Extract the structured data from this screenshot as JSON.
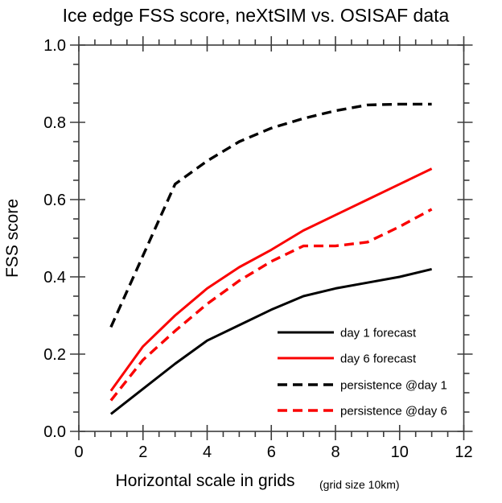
{
  "chart_data": {
    "type": "line",
    "title": "Ice edge FSS score, neXtSIM vs. OSISAF data",
    "xlabel": "Horizontal scale in grids",
    "xlabel_note": "(grid size 10km)",
    "ylabel": "FSS score",
    "xlim": [
      0,
      12
    ],
    "ylim": [
      0.0,
      1.0
    ],
    "grid": false,
    "legend_position": "lower right",
    "x": [
      1,
      2,
      3,
      4,
      5,
      6,
      7,
      8,
      9,
      10,
      11
    ],
    "series": [
      {
        "name": "day 1 forecast",
        "color": "#000000",
        "style": "solid",
        "values": [
          0.045,
          0.11,
          0.175,
          0.235,
          0.275,
          0.315,
          0.35,
          0.37,
          0.385,
          0.4,
          0.42
        ]
      },
      {
        "name": "day 6 forecast",
        "color": "#fa0000",
        "style": "solid",
        "values": [
          0.105,
          0.22,
          0.3,
          0.37,
          0.425,
          0.47,
          0.52,
          0.56,
          0.6,
          0.64,
          0.68
        ]
      },
      {
        "name": "persistence @day 1",
        "color": "#000000",
        "style": "dashed",
        "values": [
          0.27,
          0.455,
          0.64,
          0.7,
          0.75,
          0.785,
          0.81,
          0.83,
          0.845,
          0.847,
          0.847
        ]
      },
      {
        "name": "persistence @day 6",
        "color": "#fa0000",
        "style": "dashed",
        "values": [
          0.08,
          0.185,
          0.26,
          0.33,
          0.39,
          0.44,
          0.48,
          0.48,
          0.49,
          0.53,
          0.575
        ]
      }
    ],
    "xticks": {
      "values": [
        0,
        2,
        4,
        6,
        8,
        10,
        12
      ],
      "labels": [
        "0",
        "2",
        "4",
        "6",
        "8",
        "10",
        "12"
      ]
    },
    "yticks": {
      "values": [
        0.0,
        0.2,
        0.4,
        0.6,
        0.8,
        1.0
      ],
      "labels": [
        "0.0",
        "0.2",
        "0.4",
        "0.6",
        "0.8",
        "1.0"
      ]
    },
    "x_minor_step": 0.5,
    "y_minor_step": 0.05,
    "axis_color": "#3c3c3c"
  }
}
